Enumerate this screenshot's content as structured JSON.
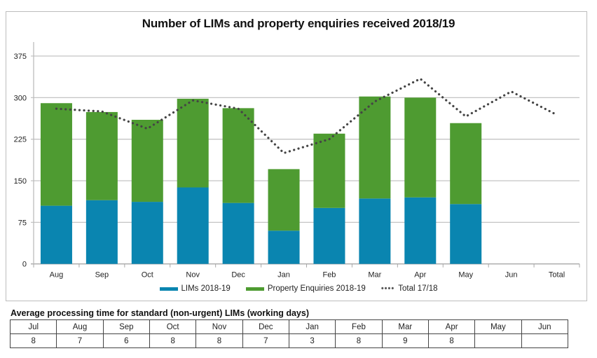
{
  "chart_data": {
    "type": "bar",
    "stacked": true,
    "title": "Number of LIMs and property enquiries received 2018/19",
    "xlabel": "",
    "ylabel": "",
    "ylim": [
      0,
      375
    ],
    "yticks": [
      "0",
      "75",
      "150",
      "225",
      "300",
      "375"
    ],
    "grid": true,
    "categories": [
      "Aug",
      "Sep",
      "Oct",
      "Nov",
      "Dec",
      "Jan",
      "Feb",
      "Mar",
      "Apr",
      "May",
      "Jun",
      "Total"
    ],
    "series": [
      {
        "name": "LIMs 2018-19",
        "type": "bar",
        "color": "#0A85B0",
        "values": [
          105,
          115,
          112,
          138,
          110,
          60,
          101,
          118,
          120,
          108,
          null,
          null
        ]
      },
      {
        "name": "Property Enquiries 2018-19",
        "type": "bar",
        "color": "#4E9B31",
        "values": [
          185,
          159,
          148,
          160,
          171,
          111,
          134,
          184,
          180,
          146,
          null,
          null
        ]
      },
      {
        "name": "Total 17/18",
        "type": "line",
        "style": "dotted",
        "color": "#444444",
        "values": [
          280,
          275,
          244,
          295,
          280,
          200,
          225,
          293,
          334,
          266,
          311,
          269
        ]
      }
    ],
    "legend": "bottom"
  },
  "legend": {
    "items": [
      {
        "label": "LIMs 2018-19",
        "color": "#0A85B0"
      },
      {
        "label": "Property Enquiries 2018-19",
        "color": "#4E9B31"
      },
      {
        "label": "Total 17/18",
        "dots": "••••"
      }
    ]
  },
  "processing_table": {
    "title": "Average processing time for standard (non-urgent) LIMs (working days)",
    "months": [
      "Jul",
      "Aug",
      "Sep",
      "Oct",
      "Nov",
      "Dec",
      "Jan",
      "Feb",
      "Mar",
      "Apr",
      "May",
      "Jun"
    ],
    "values": [
      "8",
      "7",
      "6",
      "8",
      "8",
      "7",
      "3",
      "8",
      "9",
      "8",
      "",
      ""
    ]
  }
}
